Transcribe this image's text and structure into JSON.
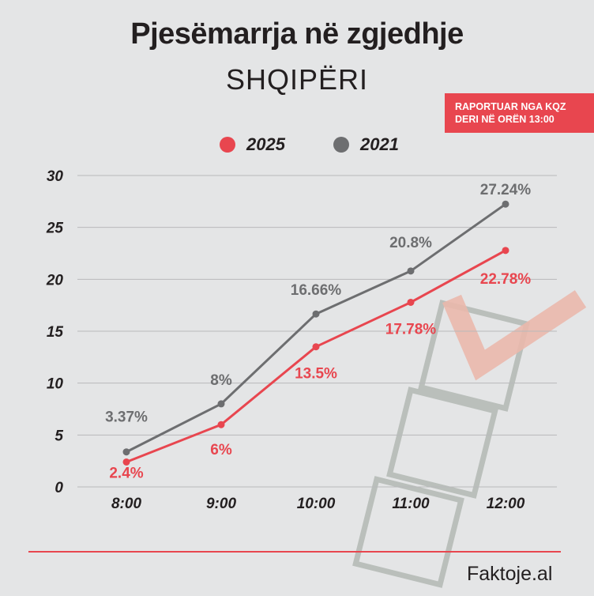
{
  "header": {
    "title": "Pjesëmarrja në zgjedhje",
    "subtitle": "SHQIPËRI"
  },
  "badge": {
    "line1": "RAPORTUAR NGA KQZ",
    "line2": "DERI NË ORËN 13:00"
  },
  "brand": {
    "logo_text": "Faktoje.al"
  },
  "colors": {
    "background": "#e4e5e6",
    "accent_red": "#e8464f",
    "series_gray": "#6d6e70",
    "text_dark": "#231f20"
  },
  "chart_data": {
    "type": "line",
    "title": "Pjesëmarrja në zgjedhje",
    "subtitle": "SHQIPËRI",
    "categories": [
      "8:00",
      "9:00",
      "10:00",
      "11:00",
      "12:00"
    ],
    "ylim": [
      0,
      30
    ],
    "yticks": [
      0,
      5,
      10,
      15,
      20,
      25,
      30
    ],
    "grid": true,
    "legend_position": "top-center",
    "series": [
      {
        "name": "2025",
        "color": "#e8464f",
        "values": [
          2.4,
          6,
          13.5,
          17.78,
          22.78
        ],
        "labels": [
          "2.4%",
          "6%",
          "13.5%",
          "17.78%",
          "22.78%"
        ]
      },
      {
        "name": "2021",
        "color": "#6d6e70",
        "values": [
          3.37,
          8,
          16.66,
          20.8,
          27.24
        ],
        "labels": [
          "3.37%",
          "8%",
          "16.66%",
          "20.8%",
          "27.24%"
        ]
      }
    ]
  }
}
